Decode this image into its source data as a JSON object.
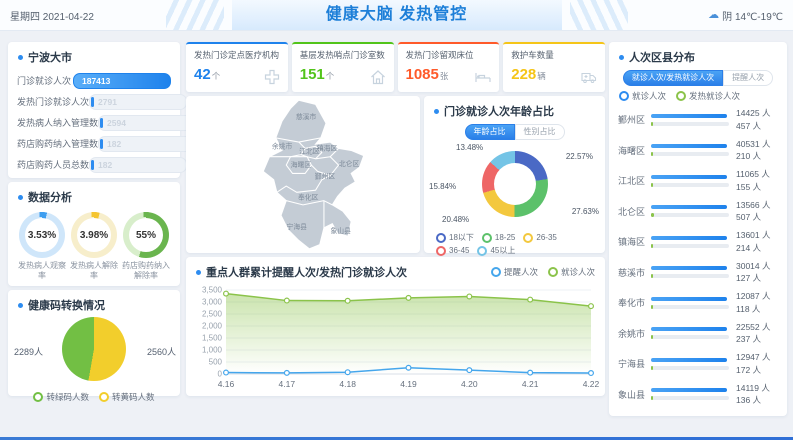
{
  "header": {
    "date": "星期四 2021-04-22",
    "title": "健康大脑 发热管控",
    "weather_text": "阴 14℃-19℃"
  },
  "ningbo_panel": {
    "title": "宁波大市",
    "rows": [
      {
        "label": "门诊就诊人次",
        "value": "187413"
      },
      {
        "label": "发热门诊就诊人次",
        "value": "2791"
      },
      {
        "label": "发热病人纳入管理数",
        "value": "2594"
      },
      {
        "label": "药店购药纳入管理数",
        "value": "182"
      },
      {
        "label": "药店购药人员总数",
        "value": "182"
      }
    ]
  },
  "analysis_panel": {
    "title": "数据分析",
    "donuts": [
      {
        "value": "3.53%",
        "pct": 3.53,
        "label": "发热病人观察率",
        "color": "#3d9ef0",
        "track": "#cfe6fa"
      },
      {
        "value": "3.98%",
        "pct": 3.98,
        "label": "发热病人解除率",
        "color": "#f5c531",
        "track": "#f7eecb"
      },
      {
        "value": "55%",
        "pct": 55,
        "label": "药店购药纳入解除率",
        "color": "#6ab54e",
        "track": "#d8eecb"
      }
    ]
  },
  "healthcode_panel": {
    "title": "健康码转换情况",
    "slices": [
      {
        "label": "转绿码人数",
        "value": 2289,
        "text": "2289人",
        "color": "#72bf44"
      },
      {
        "label": "转黄码人数",
        "value": 2560,
        "text": "2560人",
        "color": "#f2ce2c"
      }
    ]
  },
  "stat_cards": [
    {
      "label": "发热门诊定点医疗机构",
      "value": "42",
      "unit": "个",
      "color": "#1e82ec",
      "icon": "medical-cross-icon"
    },
    {
      "label": "基层发热哨点门诊室数",
      "value": "151",
      "unit": "个",
      "color": "#52c41a",
      "icon": "house-icon"
    },
    {
      "label": "发热门诊留观床位",
      "value": "1085",
      "unit": "张",
      "color": "#ff5a2a",
      "icon": "bed-icon"
    },
    {
      "label": "救护车数量",
      "value": "228",
      "unit": "辆",
      "color": "#f5c518",
      "icon": "ambulance-icon"
    }
  ],
  "map_panel": {
    "labels": [
      "慈溪市",
      "余姚市",
      "江北区",
      "镇海区",
      "海曙区",
      "北仑区",
      "鄞州区",
      "奉化区",
      "宁海县",
      "象山县"
    ]
  },
  "age_panel": {
    "title": "门诊就诊人次年龄占比",
    "tabs": [
      "年龄占比",
      "性别占比"
    ],
    "active_tab": 0,
    "slices": [
      {
        "label": "18以下",
        "pct": 22.57,
        "color": "#4a69c5"
      },
      {
        "label": "18-25",
        "pct": 27.63,
        "color": "#5cc16a"
      },
      {
        "label": "26-35",
        "pct": 20.48,
        "color": "#f3c83e"
      },
      {
        "label": "36-45",
        "pct": 15.84,
        "color": "#ee6666"
      },
      {
        "label": "45以上",
        "pct": 13.48,
        "color": "#74c4e6"
      }
    ]
  },
  "trend_panel": {
    "title": "重点人群累计提醒人次/发热门诊就诊人次",
    "x": [
      "4.16",
      "4.17",
      "4.18",
      "4.19",
      "4.20",
      "4.21",
      "4.22"
    ],
    "series": [
      {
        "name": "提醒人次",
        "color": "#45a6ec",
        "values": [
          60,
          45,
          75,
          260,
          160,
          55,
          40
        ]
      },
      {
        "name": "就诊人次",
        "color": "#8bc34a",
        "values": [
          3350,
          3060,
          3050,
          3170,
          3230,
          3100,
          2830
        ]
      }
    ],
    "ylim": [
      0,
      3500
    ],
    "ystep": 500
  },
  "district_panel": {
    "title": "人次区县分布",
    "tabs": [
      "就诊人次/发热就诊人次",
      "提醒人次"
    ],
    "active_tab": 0,
    "legend": [
      {
        "label": "就诊人次",
        "color": "#2d8cf0"
      },
      {
        "label": "发热就诊人次",
        "color": "#8bc34a"
      }
    ],
    "unit": "人",
    "rows": [
      {
        "name": "鄞州区",
        "visits": 14425,
        "fever": 457
      },
      {
        "name": "海曙区",
        "visits": 40531,
        "fever": 210
      },
      {
        "name": "江北区",
        "visits": 11065,
        "fever": 155
      },
      {
        "name": "北仑区",
        "visits": 13566,
        "fever": 507
      },
      {
        "name": "镇海区",
        "visits": 13601,
        "fever": 214
      },
      {
        "name": "慈溪市",
        "visits": 30014,
        "fever": 127
      },
      {
        "name": "奉化市",
        "visits": 12087,
        "fever": 118
      },
      {
        "name": "余姚市",
        "visits": 22552,
        "fever": 237
      },
      {
        "name": "宁海县",
        "visits": 12947,
        "fever": 172
      },
      {
        "name": "象山县",
        "visits": 14119,
        "fever": 136
      }
    ]
  },
  "chart_data": [
    {
      "type": "pie",
      "title": "门诊就诊人次年龄占比",
      "labels": [
        "18以下",
        "18-25",
        "26-35",
        "36-45",
        "45以上"
      ],
      "values": [
        22.57,
        27.63,
        20.48,
        15.84,
        13.48
      ],
      "unit": "%",
      "legend_position": "bottom"
    },
    {
      "type": "pie",
      "title": "健康码转换情况",
      "labels": [
        "转绿码人数",
        "转黄码人数"
      ],
      "values": [
        2289,
        2560
      ],
      "unit": "人",
      "legend_position": "bottom"
    },
    {
      "type": "pie",
      "title": "数据分析",
      "labels": [
        "发热病人观察率",
        "发热病人解除率",
        "药店购药纳入解除率"
      ],
      "values": [
        3.53,
        3.98,
        55
      ],
      "unit": "%"
    },
    {
      "type": "line",
      "title": "重点人群累计提醒人次/发热门诊就诊人次",
      "x": [
        "4.16",
        "4.17",
        "4.18",
        "4.19",
        "4.20",
        "4.21",
        "4.22"
      ],
      "series": [
        {
          "name": "提醒人次",
          "values": [
            60,
            45,
            75,
            260,
            160,
            55,
            40
          ]
        },
        {
          "name": "就诊人次",
          "values": [
            3350,
            3060,
            3050,
            3170,
            3230,
            3100,
            2830
          ]
        }
      ],
      "ylim": [
        0,
        3500
      ],
      "grid": true,
      "legend_position": "top-right"
    },
    {
      "type": "bar",
      "title": "人次区县分布",
      "categories": [
        "鄞州区",
        "海曙区",
        "江北区",
        "北仑区",
        "镇海区",
        "慈溪市",
        "奉化市",
        "余姚市",
        "宁海县",
        "象山县"
      ],
      "series": [
        {
          "name": "就诊人次",
          "values": [
            14425,
            40531,
            11065,
            13566,
            13601,
            30014,
            12087,
            22552,
            12947,
            14119
          ]
        },
        {
          "name": "发热就诊人次",
          "values": [
            457,
            210,
            155,
            507,
            214,
            127,
            118,
            237,
            172,
            136
          ]
        }
      ],
      "unit": "人"
    }
  ]
}
